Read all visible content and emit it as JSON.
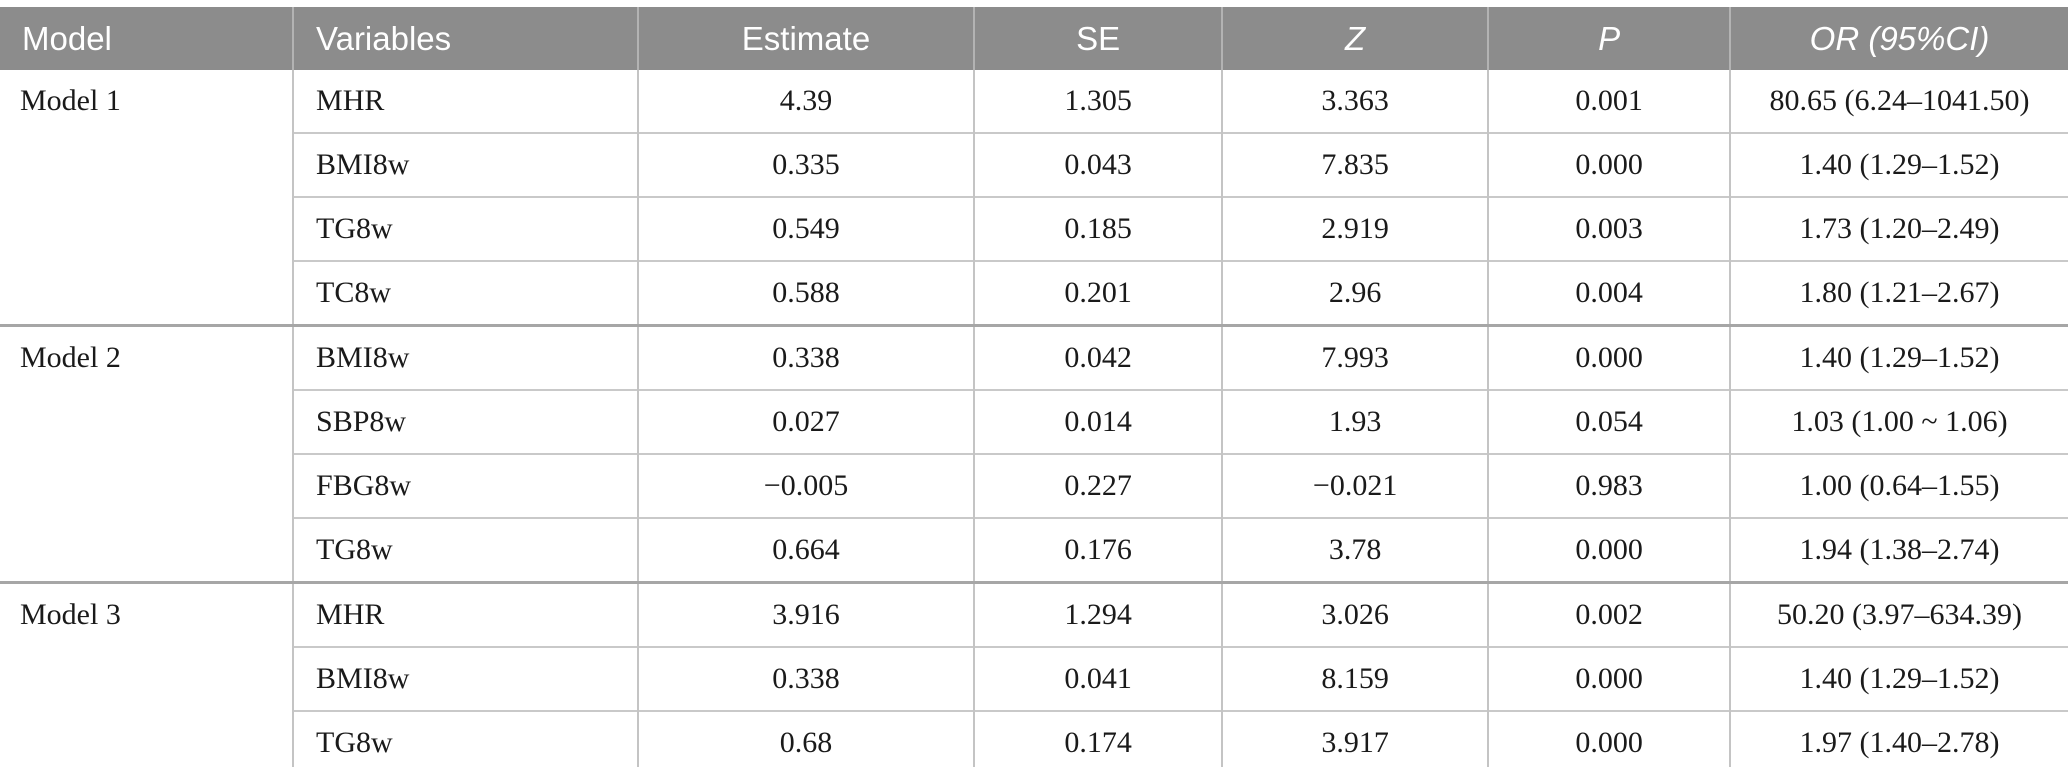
{
  "colors": {
    "header_bg": "#8c8c8c",
    "header_text": "#ffffff",
    "row_divider": "#c9c9c9",
    "group_divider": "#a6a6a6",
    "column_divider": "#c4c4c4",
    "body_text": "#1a1a1a"
  },
  "table": {
    "columns": [
      {
        "id": "model",
        "label": "Model"
      },
      {
        "id": "variables",
        "label": "Variables"
      },
      {
        "id": "estimate",
        "label": "Estimate"
      },
      {
        "id": "se",
        "label": "SE"
      },
      {
        "id": "z",
        "label": "Z"
      },
      {
        "id": "p",
        "label": "P"
      },
      {
        "id": "or_ci",
        "label": "OR (95%CI)"
      }
    ],
    "groups": [
      {
        "model": "Model 1",
        "rows": [
          {
            "variable": "MHR",
            "estimate": "4.39",
            "se": "1.305",
            "z": "3.363",
            "p": "0.001",
            "or_ci": "80.65 (6.24–1041.50)"
          },
          {
            "variable": "BMI8w",
            "estimate": "0.335",
            "se": "0.043",
            "z": "7.835",
            "p": "0.000",
            "or_ci": "1.40 (1.29–1.52)"
          },
          {
            "variable": "TG8w",
            "estimate": "0.549",
            "se": "0.185",
            "z": "2.919",
            "p": "0.003",
            "or_ci": "1.73 (1.20–2.49)"
          },
          {
            "variable": "TC8w",
            "estimate": "0.588",
            "se": "0.201",
            "z": "2.96",
            "p": "0.004",
            "or_ci": "1.80 (1.21–2.67)"
          }
        ]
      },
      {
        "model": "Model 2",
        "rows": [
          {
            "variable": "BMI8w",
            "estimate": "0.338",
            "se": "0.042",
            "z": "7.993",
            "p": "0.000",
            "or_ci": "1.40 (1.29–1.52)"
          },
          {
            "variable": "SBP8w",
            "estimate": "0.027",
            "se": "0.014",
            "z": "1.93",
            "p": "0.054",
            "or_ci": "1.03 (1.00 ~ 1.06)"
          },
          {
            "variable": "FBG8w",
            "estimate": "−0.005",
            "se": "0.227",
            "z": "−0.021",
            "p": "0.983",
            "or_ci": "1.00 (0.64–1.55)"
          },
          {
            "variable": "TG8w",
            "estimate": "0.664",
            "se": "0.176",
            "z": "3.78",
            "p": "0.000",
            "or_ci": "1.94 (1.38–2.74)"
          }
        ]
      },
      {
        "model": "Model 3",
        "rows": [
          {
            "variable": "MHR",
            "estimate": "3.916",
            "se": "1.294",
            "z": "3.026",
            "p": "0.002",
            "or_ci": "50.20 (3.97–634.39)"
          },
          {
            "variable": "BMI8w",
            "estimate": "0.338",
            "se": "0.041",
            "z": "8.159",
            "p": "0.000",
            "or_ci": "1.40 (1.29–1.52)"
          },
          {
            "variable": "TG8w",
            "estimate": "0.68",
            "se": "0.174",
            "z": "3.917",
            "p": "0.000",
            "or_ci": "1.97 (1.40–2.78)"
          }
        ]
      }
    ]
  }
}
